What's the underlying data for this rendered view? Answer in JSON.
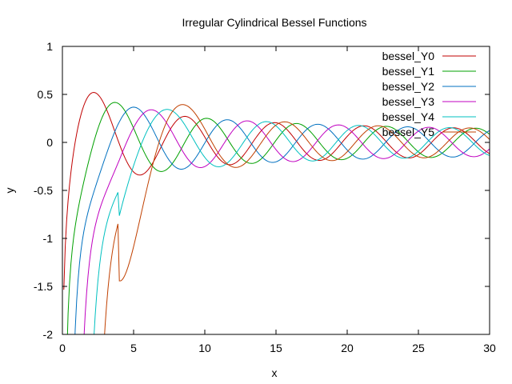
{
  "chart_data": {
    "type": "line",
    "title": "Irregular Cylindrical Bessel Functions",
    "xlabel": "x",
    "ylabel": "y",
    "xlim": [
      0,
      30
    ],
    "ylim": [
      -2,
      1
    ],
    "x_ticks": [
      0,
      5,
      10,
      15,
      20,
      25,
      30
    ],
    "y_ticks": [
      -2,
      -1.5,
      -1,
      -0.5,
      0,
      0.5,
      1
    ],
    "grid": false,
    "legend_position": "top-right",
    "series": [
      {
        "name": "bessel_Y0",
        "order": 0,
        "color": "#c00000"
      },
      {
        "name": "bessel_Y1",
        "order": 1,
        "color": "#00a000"
      },
      {
        "name": "bessel_Y2",
        "order": 2,
        "color": "#0070c0"
      },
      {
        "name": "bessel_Y3",
        "order": 3,
        "color": "#c000c0"
      },
      {
        "name": "bessel_Y4",
        "order": 4,
        "color": "#00c0c0"
      },
      {
        "name": "bessel_Y5",
        "order": 5,
        "color": "#c04000"
      }
    ]
  }
}
